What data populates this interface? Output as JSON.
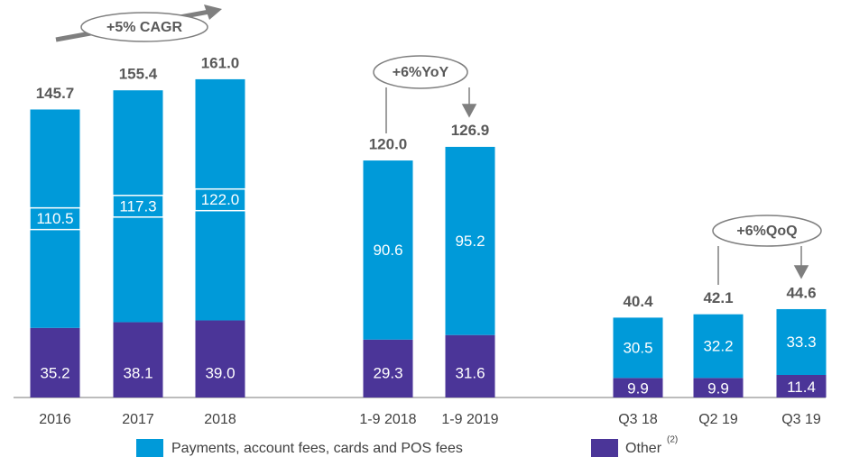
{
  "chart_data": {
    "type": "stacked_bar",
    "categories": [
      "2016",
      "2017",
      "2018",
      "1-9 2018",
      "1-9 2019",
      "Q3 18",
      "Q2 19",
      "Q3 19"
    ],
    "series": [
      {
        "name": "Other",
        "color": "#4b3598",
        "values": [
          35.2,
          38.1,
          39.0,
          29.3,
          31.6,
          9.9,
          9.9,
          11.4
        ],
        "value_labels": [
          "35.2",
          "38.1",
          "39.0",
          "29.3",
          "31.6",
          "9.9",
          "9.9",
          "11.4"
        ]
      },
      {
        "name": "Payments, account fees, cards and POS fees",
        "color": "#009ad9",
        "values": [
          110.5,
          117.3,
          122.0,
          90.6,
          95.2,
          30.5,
          32.2,
          33.3
        ],
        "value_labels": [
          "110.5",
          "117.3",
          "122.0",
          "90.6",
          "95.2",
          "30.5",
          "32.2",
          "33.3"
        ]
      }
    ],
    "totals": {
      "values": [
        145.7,
        155.4,
        161.0,
        120.0,
        126.9,
        40.4,
        42.1,
        44.6
      ],
      "value_labels": [
        "145.7",
        "155.4",
        "161.0",
        "120.0",
        "126.9",
        "40.4",
        "42.1",
        "44.6"
      ]
    },
    "annotations": [
      "+5% CAGR",
      "+6%YoY",
      "+6%QoQ"
    ],
    "other_footnote": "(2)",
    "ylim": [
      0,
      200
    ]
  }
}
